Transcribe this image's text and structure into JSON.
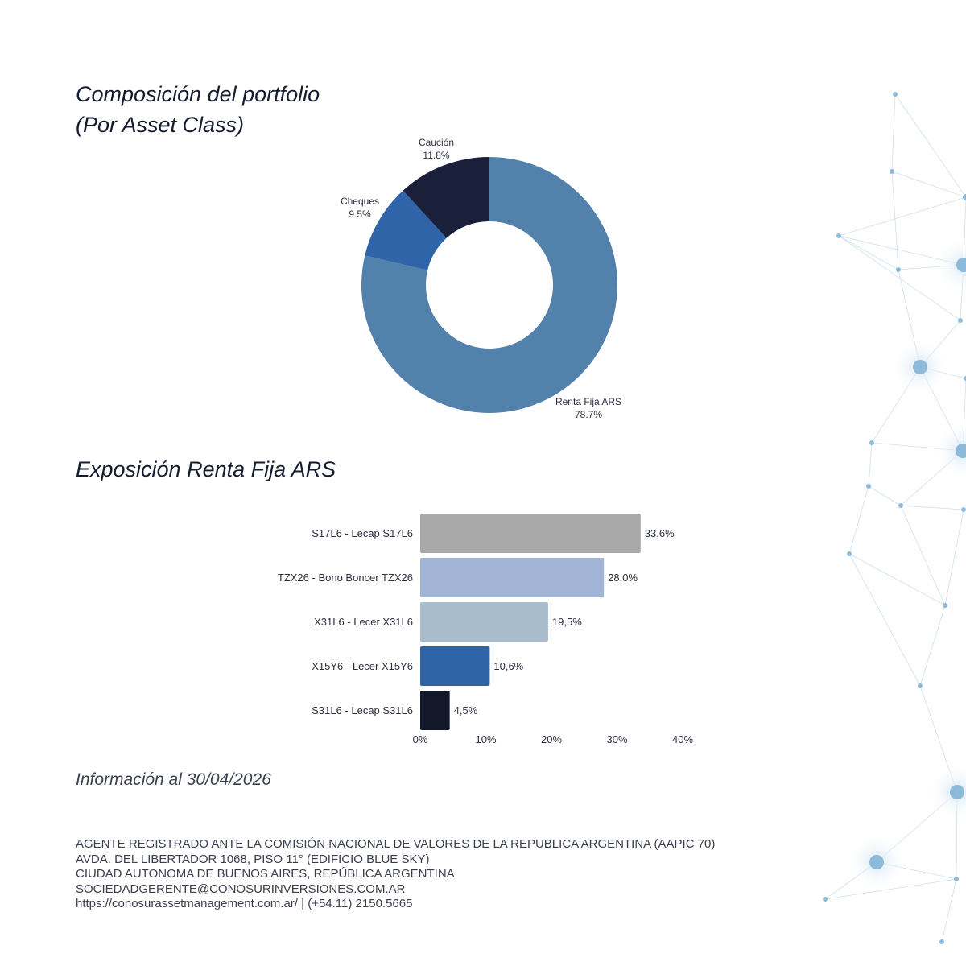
{
  "donut_title": [
    "Composición del portfolio",
    "(Por Asset Class)"
  ],
  "bar_title": "Exposición Renta Fija ARS",
  "info_text": "Información al 30/04/2026",
  "footer_lines": [
    "AGENTE REGISTRADO ANTE LA COMISIÓN NACIONAL DE VALORES DE LA REPUBLICA ARGENTINA (AAPIC 70)",
    "AVDA. DEL LIBERTADOR 1068, PISO 11° (EDIFICIO BLUE SKY)",
    "CIUDAD AUTONOMA DE BUENOS AIRES, REPÚBLICA ARGENTINA",
    "SOCIEDADGERENTE@CONOSURINVERSIONES.COM.AR",
    "https://conosurassetmanagement.com.ar/ | (+54.11) 2150.5665"
  ],
  "chart_data": [
    {
      "type": "pie",
      "variant": "donut",
      "categories": [
        "Renta Fija ARS",
        "Cheques",
        "Caución"
      ],
      "values": [
        78.7,
        9.5,
        11.8
      ],
      "value_labels": [
        "78.7%",
        "9.5%",
        "11.8%"
      ],
      "colors": [
        "#5281ac",
        "#2f65a8",
        "#1a1f3a"
      ]
    },
    {
      "type": "bar",
      "orientation": "horizontal",
      "categories": [
        "S17L6 - Lecap S17L6",
        "TZX26 - Bono Boncer TZX26",
        "X31L6 - Lecer X31L6",
        "X15Y6 - Lecer X15Y6",
        "S31L6 - Lecap S31L6"
      ],
      "values": [
        33.6,
        28.0,
        19.5,
        10.6,
        4.5
      ],
      "value_labels": [
        "33,6%",
        "28,0%",
        "19,5%",
        "10,6%",
        "4,5%"
      ],
      "colors": [
        "#a9a9a9",
        "#a2b5d6",
        "#a9bccb",
        "#2f65a8",
        "#12172a"
      ],
      "xlim": [
        0,
        40
      ],
      "xticks": [
        "0%",
        "10%",
        "20%",
        "30%",
        "40%"
      ],
      "grid": false
    }
  ]
}
